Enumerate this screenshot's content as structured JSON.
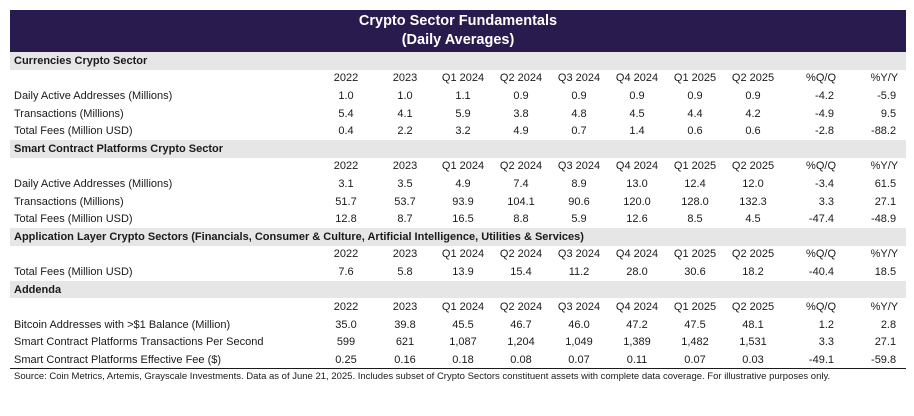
{
  "title_line1": "Crypto Sector Fundamentals",
  "title_line2": "(Daily Averages)",
  "columns": [
    "2022",
    "2023",
    "Q1 2024",
    "Q2 2024",
    "Q3 2024",
    "Q4 2024",
    "Q1 2025",
    "Q2 2025",
    "%Q/Q",
    "%Y/Y"
  ],
  "sections": [
    {
      "title": "Currencies Crypto Sector",
      "rows": [
        {
          "label": "Daily Active Addresses (Millions)",
          "values": [
            "1.0",
            "1.0",
            "1.1",
            "0.9",
            "0.9",
            "0.9",
            "0.9",
            "0.9",
            "-4.2",
            "-5.9"
          ]
        },
        {
          "label": "Transactions (Millions)",
          "values": [
            "5.4",
            "4.1",
            "5.9",
            "3.8",
            "4.8",
            "4.5",
            "4.4",
            "4.2",
            "-4.9",
            "9.5"
          ]
        },
        {
          "label": "Total Fees (Million USD)",
          "values": [
            "0.4",
            "2.2",
            "3.2",
            "4.9",
            "0.7",
            "1.4",
            "0.6",
            "0.6",
            "-2.8",
            "-88.2"
          ]
        }
      ]
    },
    {
      "title": "Smart Contract Platforms Crypto Sector",
      "rows": [
        {
          "label": "Daily Active Addresses (Millions)",
          "values": [
            "3.1",
            "3.5",
            "4.9",
            "7.4",
            "8.9",
            "13.0",
            "12.4",
            "12.0",
            "-3.4",
            "61.5"
          ]
        },
        {
          "label": "Transactions (Millions)",
          "values": [
            "51.7",
            "53.7",
            "93.9",
            "104.1",
            "90.6",
            "120.0",
            "128.0",
            "132.3",
            "3.3",
            "27.1"
          ]
        },
        {
          "label": "Total Fees (Million USD)",
          "values": [
            "12.8",
            "8.7",
            "16.5",
            "8.8",
            "5.9",
            "12.6",
            "8.5",
            "4.5",
            "-47.4",
            "-48.9"
          ]
        }
      ]
    },
    {
      "title": "Application Layer Crypto Sectors (Financials, Consumer & Culture, Artificial Intelligence, Utilities & Services)",
      "rows": [
        {
          "label": "Total Fees (Million USD)",
          "values": [
            "7.6",
            "5.8",
            "13.9",
            "15.4",
            "11.2",
            "28.0",
            "30.6",
            "18.2",
            "-40.4",
            "18.5"
          ]
        }
      ]
    },
    {
      "title": "Addenda",
      "rows": [
        {
          "label": "Bitcoin Addresses with >$1 Balance (Million)",
          "values": [
            "35.0",
            "39.8",
            "45.5",
            "46.7",
            "46.0",
            "47.2",
            "47.5",
            "48.1",
            "1.2",
            "2.8"
          ]
        },
        {
          "label": "Smart Contract Platforms Transactions Per Second",
          "values": [
            "599",
            "621",
            "1,087",
            "1,204",
            "1,049",
            "1,389",
            "1,482",
            "1,531",
            "3.3",
            "27.1"
          ]
        },
        {
          "label": "Smart Contract Platforms Effective Fee ($)",
          "values": [
            "0.25",
            "0.16",
            "0.18",
            "0.08",
            "0.07",
            "0.11",
            "0.07",
            "0.03",
            "-49.1",
            "-59.8"
          ]
        }
      ]
    }
  ],
  "source_note": "Source: Coin Metrics, Artemis, Grayscale Investments. Data as of June 21, 2025. Includes subset of Crypto Sectors constituent assets with complete data coverage. For illustrative purposes only.",
  "colors": {
    "title_bg": "#2a1b4e",
    "section_bg": "#e6e6e6"
  }
}
